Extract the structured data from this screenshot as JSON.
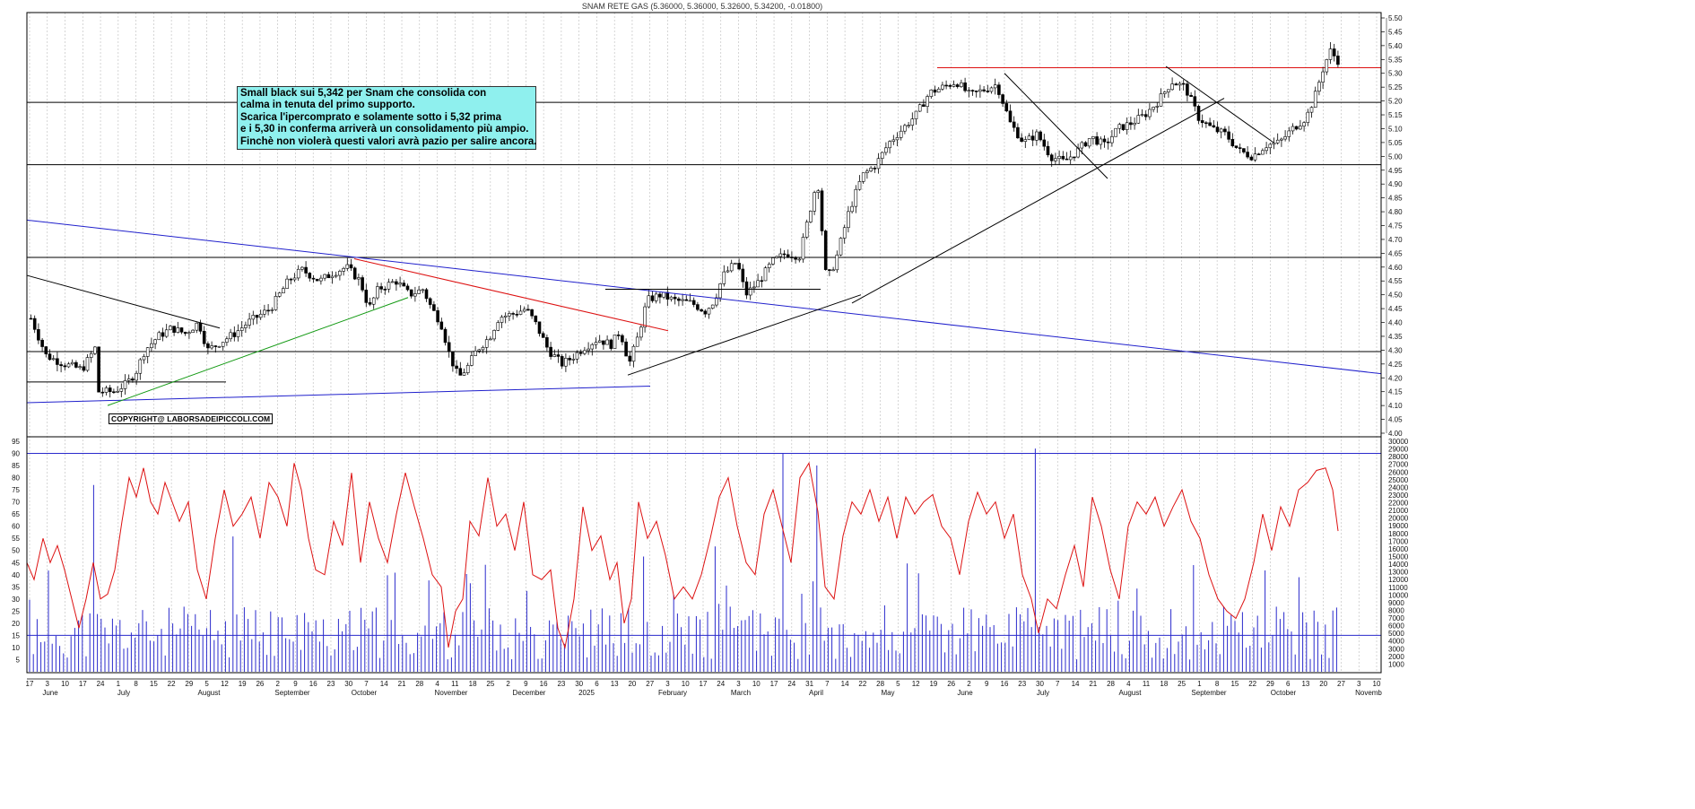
{
  "chart_data": [
    {
      "type": "candlestick",
      "title": "SNAM RETE GAS (5.36000, 5.36000, 5.32600, 5.34200, -0.01800)",
      "y_axis": {
        "position": "right",
        "ylim": [
          4.0,
          5.5
        ],
        "step": 0.05,
        "decimals": 2
      },
      "x_axis": {
        "months": [
          "June",
          "July",
          "August",
          "September",
          "October",
          "November",
          "December",
          "2025",
          "February",
          "March",
          "April",
          "May",
          "June",
          "July",
          "August",
          "September",
          "October",
          "Novemb"
        ],
        "days": [
          "17",
          "3",
          "10",
          "17",
          "24",
          "1",
          "8",
          "15",
          "22",
          "29",
          "5",
          "12",
          "19",
          "26",
          "2",
          "9",
          "16",
          "23",
          "30",
          "7",
          "14",
          "21",
          "28",
          "4",
          "11",
          "18",
          "25",
          "2",
          "9",
          "16",
          "23",
          "30",
          "6",
          "13",
          "20",
          "27",
          "3",
          "10",
          "17",
          "24",
          "3",
          "10",
          "17",
          "24",
          "31",
          "7",
          "14",
          "22",
          "28",
          "5",
          "12",
          "19",
          "26",
          "2",
          "9",
          "16",
          "23",
          "30",
          "7",
          "14",
          "21",
          "28",
          "4",
          "11",
          "18",
          "25",
          "1",
          "8",
          "15",
          "22",
          "29",
          "6",
          "13",
          "20",
          "27",
          "3",
          "10"
        ]
      },
      "price_path": [
        [
          0,
          4.38
        ],
        [
          8,
          4.33
        ],
        [
          20,
          4.51
        ],
        [
          35,
          4.4
        ],
        [
          50,
          4.28
        ],
        [
          70,
          4.25
        ],
        [
          90,
          4.23
        ],
        [
          105,
          4.31
        ],
        [
          108,
          4.15
        ],
        [
          125,
          4.15
        ],
        [
          140,
          4.18
        ],
        [
          150,
          4.22
        ],
        [
          160,
          4.3
        ],
        [
          175,
          4.35
        ],
        [
          190,
          4.38
        ],
        [
          205,
          4.36
        ],
        [
          220,
          4.4
        ],
        [
          230,
          4.3
        ],
        [
          240,
          4.32
        ],
        [
          260,
          4.36
        ],
        [
          275,
          4.4
        ],
        [
          300,
          4.45
        ],
        [
          320,
          4.55
        ],
        [
          335,
          4.59
        ],
        [
          355,
          4.55
        ],
        [
          370,
          4.58
        ],
        [
          385,
          4.6
        ],
        [
          400,
          4.55
        ],
        [
          410,
          4.45
        ],
        [
          420,
          4.52
        ],
        [
          440,
          4.55
        ],
        [
          455,
          4.5
        ],
        [
          470,
          4.52
        ],
        [
          480,
          4.45
        ],
        [
          490,
          4.4
        ],
        [
          500,
          4.28
        ],
        [
          510,
          4.2
        ],
        [
          520,
          4.24
        ],
        [
          530,
          4.3
        ],
        [
          545,
          4.35
        ],
        [
          555,
          4.42
        ],
        [
          570,
          4.43
        ],
        [
          585,
          4.45
        ],
        [
          595,
          4.4
        ],
        [
          610,
          4.3
        ],
        [
          625,
          4.25
        ],
        [
          635,
          4.27
        ],
        [
          650,
          4.31
        ],
        [
          665,
          4.34
        ],
        [
          680,
          4.32
        ],
        [
          690,
          4.37
        ],
        [
          700,
          4.25
        ],
        [
          710,
          4.35
        ],
        [
          720,
          4.48
        ],
        [
          735,
          4.5
        ],
        [
          750,
          4.48
        ],
        [
          770,
          4.47
        ],
        [
          785,
          4.44
        ],
        [
          795,
          4.48
        ],
        [
          805,
          4.57
        ],
        [
          820,
          4.62
        ],
        [
          830,
          4.5
        ],
        [
          845,
          4.55
        ],
        [
          860,
          4.62
        ],
        [
          875,
          4.65
        ],
        [
          890,
          4.64
        ],
        [
          900,
          4.78
        ],
        [
          910,
          4.92
        ],
        [
          920,
          4.55
        ],
        [
          930,
          4.62
        ],
        [
          945,
          4.8
        ],
        [
          960,
          4.93
        ],
        [
          975,
          4.97
        ],
        [
          990,
          5.05
        ],
        [
          1005,
          5.1
        ],
        [
          1020,
          5.15
        ],
        [
          1035,
          5.23
        ],
        [
          1050,
          5.25
        ],
        [
          1065,
          5.27
        ],
        [
          1080,
          5.22
        ],
        [
          1095,
          5.24
        ],
        [
          1110,
          5.26
        ],
        [
          1125,
          5.12
        ],
        [
          1140,
          5.05
        ],
        [
          1155,
          5.08
        ],
        [
          1170,
          5.0
        ],
        [
          1185,
          4.98
        ],
        [
          1200,
          5.02
        ],
        [
          1215,
          5.07
        ],
        [
          1230,
          5.04
        ],
        [
          1245,
          5.1
        ],
        [
          1260,
          5.12
        ],
        [
          1275,
          5.15
        ],
        [
          1290,
          5.2
        ],
        [
          1305,
          5.27
        ],
        [
          1320,
          5.25
        ],
        [
          1335,
          5.14
        ],
        [
          1350,
          5.1
        ],
        [
          1365,
          5.08
        ],
        [
          1380,
          5.02
        ],
        [
          1395,
          5.0
        ],
        [
          1410,
          5.04
        ],
        [
          1425,
          5.05
        ],
        [
          1440,
          5.1
        ],
        [
          1455,
          5.14
        ],
        [
          1465,
          5.22
        ],
        [
          1475,
          5.33
        ],
        [
          1482,
          5.38
        ],
        [
          1492,
          5.34
        ]
      ],
      "horizontal_levels": [
        5.32,
        5.195,
        4.97,
        4.635,
        4.295,
        4.185
      ],
      "trendlines": [
        {
          "color": "#2020cc",
          "from": [
            30,
            4.77
          ],
          "to": [
            1540,
            4.215
          ]
        },
        {
          "color": "#2020cc",
          "from": [
            30,
            4.11
          ],
          "to": [
            725,
            4.17
          ]
        },
        {
          "color": "#dd1111",
          "from": [
            395,
            4.63
          ],
          "to": [
            745,
            4.37
          ]
        },
        {
          "color": "#119911",
          "from": [
            120,
            4.1
          ],
          "to": [
            455,
            4.49
          ]
        },
        {
          "color": "#000000",
          "from": [
            30,
            4.57
          ],
          "to": [
            245,
            4.38
          ]
        },
        {
          "color": "#000000",
          "from": [
            700,
            4.21
          ],
          "to": [
            960,
            4.5
          ]
        },
        {
          "color": "#000000",
          "from": [
            950,
            4.47
          ],
          "to": [
            1365,
            5.21
          ]
        },
        {
          "color": "#000000",
          "from": [
            1120,
            5.3
          ],
          "to": [
            1235,
            4.92
          ]
        },
        {
          "color": "#000000",
          "from": [
            1300,
            5.325
          ],
          "to": [
            1420,
            5.05
          ]
        },
        {
          "color": "#000000",
          "from": [
            675,
            4.52
          ],
          "to": [
            915,
            4.52
          ]
        }
      ]
    },
    {
      "type": "bar+line",
      "left_axis": {
        "ylim": [
          0,
          95
        ],
        "ticks": [
          5,
          10,
          15,
          20,
          25,
          30,
          35,
          40,
          45,
          50,
          55,
          60,
          65,
          70,
          75,
          80,
          85,
          90,
          95
        ]
      },
      "right_axis": {
        "ylim": [
          0,
          30000
        ],
        "ticks": [
          1000,
          2000,
          3000,
          4000,
          5000,
          6000,
          7000,
          8000,
          9000,
          10000,
          11000,
          12000,
          13000,
          14000,
          15000,
          16000,
          17000,
          18000,
          19000,
          20000,
          21000,
          22000,
          23000,
          24000,
          25000,
          26000,
          27000,
          28000,
          29000,
          30000
        ]
      },
      "levels": [
        90,
        15
      ],
      "volume_series_color": "#2a2acc",
      "oscillator_color": "#dd1111",
      "oscillator_path": [
        [
          30,
          45
        ],
        [
          38,
          38
        ],
        [
          48,
          55
        ],
        [
          56,
          45
        ],
        [
          64,
          52
        ],
        [
          72,
          42
        ],
        [
          80,
          30
        ],
        [
          88,
          18
        ],
        [
          96,
          30
        ],
        [
          104,
          45
        ],
        [
          112,
          30
        ],
        [
          120,
          32
        ],
        [
          128,
          42
        ],
        [
          136,
          62
        ],
        [
          144,
          80
        ],
        [
          152,
          72
        ],
        [
          160,
          84
        ],
        [
          168,
          70
        ],
        [
          176,
          65
        ],
        [
          184,
          78
        ],
        [
          192,
          70
        ],
        [
          200,
          62
        ],
        [
          210,
          70
        ],
        [
          220,
          42
        ],
        [
          230,
          30
        ],
        [
          240,
          55
        ],
        [
          250,
          75
        ],
        [
          260,
          60
        ],
        [
          270,
          65
        ],
        [
          280,
          72
        ],
        [
          290,
          55
        ],
        [
          300,
          78
        ],
        [
          310,
          72
        ],
        [
          320,
          60
        ],
        [
          328,
          86
        ],
        [
          336,
          75
        ],
        [
          344,
          55
        ],
        [
          352,
          42
        ],
        [
          362,
          40
        ],
        [
          372,
          62
        ],
        [
          382,
          52
        ],
        [
          392,
          82
        ],
        [
          402,
          45
        ],
        [
          412,
          70
        ],
        [
          422,
          55
        ],
        [
          432,
          45
        ],
        [
          442,
          65
        ],
        [
          452,
          82
        ],
        [
          462,
          68
        ],
        [
          472,
          55
        ],
        [
          482,
          40
        ],
        [
          492,
          35
        ],
        [
          500,
          10
        ],
        [
          508,
          25
        ],
        [
          516,
          30
        ],
        [
          524,
          62
        ],
        [
          534,
          56
        ],
        [
          544,
          80
        ],
        [
          554,
          60
        ],
        [
          564,
          65
        ],
        [
          574,
          50
        ],
        [
          584,
          70
        ],
        [
          594,
          40
        ],
        [
          604,
          38
        ],
        [
          614,
          42
        ],
        [
          622,
          18
        ],
        [
          630,
          10
        ],
        [
          640,
          30
        ],
        [
          650,
          68
        ],
        [
          660,
          50
        ],
        [
          670,
          56
        ],
        [
          680,
          38
        ],
        [
          688,
          45
        ],
        [
          696,
          20
        ],
        [
          704,
          30
        ],
        [
          712,
          70
        ],
        [
          722,
          55
        ],
        [
          732,
          62
        ],
        [
          742,
          48
        ],
        [
          752,
          30
        ],
        [
          762,
          35
        ],
        [
          772,
          30
        ],
        [
          782,
          40
        ],
        [
          792,
          55
        ],
        [
          802,
          72
        ],
        [
          812,
          80
        ],
        [
          822,
          60
        ],
        [
          832,
          45
        ],
        [
          842,
          40
        ],
        [
          852,
          65
        ],
        [
          862,
          75
        ],
        [
          872,
          60
        ],
        [
          882,
          45
        ],
        [
          892,
          80
        ],
        [
          902,
          86
        ],
        [
          912,
          66
        ],
        [
          920,
          35
        ],
        [
          930,
          30
        ],
        [
          940,
          56
        ],
        [
          950,
          70
        ],
        [
          960,
          65
        ],
        [
          970,
          75
        ],
        [
          980,
          62
        ],
        [
          990,
          72
        ],
        [
          1000,
          55
        ],
        [
          1010,
          72
        ],
        [
          1020,
          65
        ],
        [
          1030,
          70
        ],
        [
          1040,
          73
        ],
        [
          1050,
          60
        ],
        [
          1060,
          55
        ],
        [
          1070,
          40
        ],
        [
          1080,
          62
        ],
        [
          1090,
          74
        ],
        [
          1100,
          65
        ],
        [
          1110,
          70
        ],
        [
          1120,
          55
        ],
        [
          1130,
          65
        ],
        [
          1140,
          40
        ],
        [
          1150,
          30
        ],
        [
          1158,
          16
        ],
        [
          1168,
          30
        ],
        [
          1178,
          26
        ],
        [
          1188,
          40
        ],
        [
          1198,
          52
        ],
        [
          1208,
          35
        ],
        [
          1218,
          72
        ],
        [
          1228,
          60
        ],
        [
          1238,
          42
        ],
        [
          1248,
          30
        ],
        [
          1258,
          60
        ],
        [
          1268,
          70
        ],
        [
          1278,
          65
        ],
        [
          1288,
          72
        ],
        [
          1298,
          60
        ],
        [
          1308,
          68
        ],
        [
          1318,
          75
        ],
        [
          1328,
          62
        ],
        [
          1338,
          55
        ],
        [
          1348,
          40
        ],
        [
          1358,
          30
        ],
        [
          1368,
          25
        ],
        [
          1378,
          22
        ],
        [
          1388,
          30
        ],
        [
          1398,
          45
        ],
        [
          1408,
          65
        ],
        [
          1418,
          50
        ],
        [
          1428,
          68
        ],
        [
          1438,
          60
        ],
        [
          1448,
          75
        ],
        [
          1458,
          78
        ],
        [
          1468,
          83
        ],
        [
          1478,
          84
        ],
        [
          1486,
          75
        ],
        [
          1492,
          58
        ]
      ]
    }
  ],
  "annotation": {
    "lines": [
      "Small black sui 5,342 per Snam che consolida con",
      "calma in tenuta del primo supporto.",
      "Scarica l'ipercomprato e solamente sotto i 5,32 prima",
      "e i 5,30 in conferma arriverà un consolidamento più ampio.",
      "Finchè non violerà questi valori avrà pazio per salire ancora."
    ]
  },
  "copyright": "COPYRIGHT@ LABORSADEIPICCOLI.COM",
  "colors": {
    "grid": "#bbbbbb",
    "frame": "#000000",
    "note_bg": "#8ff0ee"
  }
}
